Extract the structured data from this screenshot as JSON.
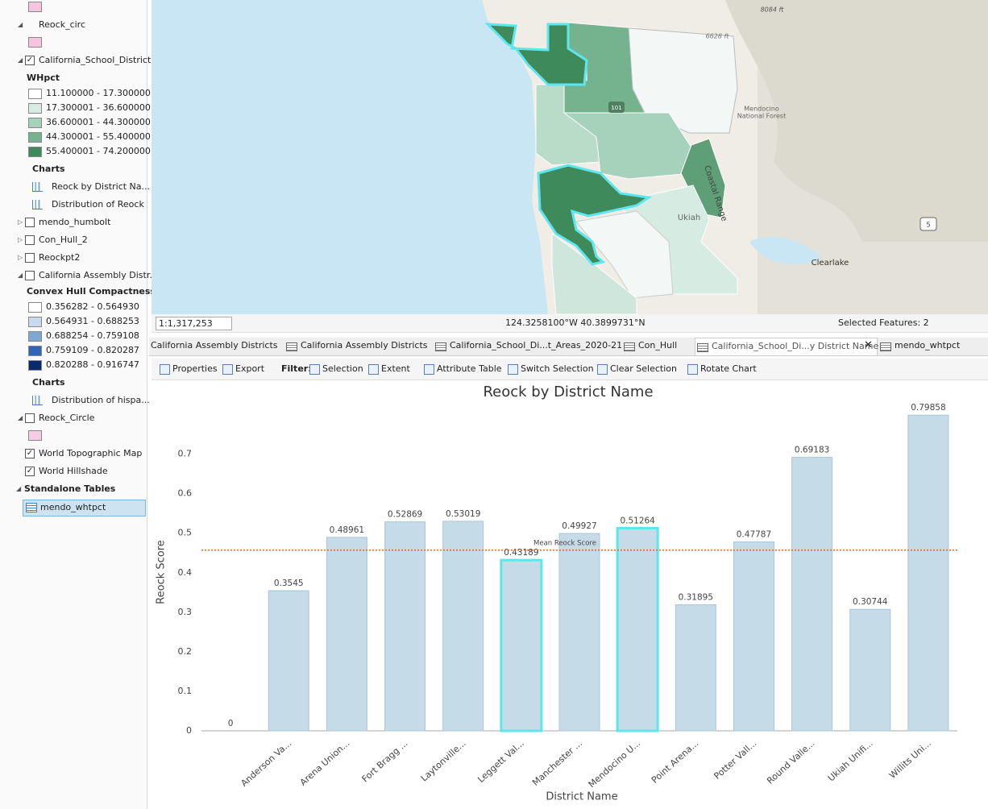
{
  "contents": {
    "top_swatch_color": "#f4c5dc",
    "layers": [
      {
        "name": "Reock_circ",
        "expanded": true,
        "swatch": "#f4c5dc"
      },
      {
        "name": "California_School_District...",
        "expanded": true,
        "checked": true,
        "legend_title": "WHpct",
        "classes": [
          {
            "label": "11.100000 - 17.300000",
            "color": "#ffffff"
          },
          {
            "label": "17.300001 - 36.600000",
            "color": "#d6ebe2"
          },
          {
            "label": "36.600001 - 44.300000",
            "color": "#a6d1bb"
          },
          {
            "label": "44.300001 - 55.400000",
            "color": "#75b38f"
          },
          {
            "label": "55.400001 - 74.200000",
            "color": "#3f8a5a"
          }
        ],
        "charts_title": "Charts",
        "charts": [
          "Reock by District Na...",
          "Distribution of Reock"
        ]
      },
      {
        "name": "mendo_humbolt",
        "expanded": false,
        "checked": false
      },
      {
        "name": "Con_Hull_2",
        "expanded": false,
        "checked": false
      },
      {
        "name": "Reockpt2",
        "expanded": false,
        "checked": false
      },
      {
        "name": "California Assembly Distr...",
        "expanded": true,
        "checked": false,
        "legend_title": "Convex Hull Compactness",
        "classes": [
          {
            "label": "0.356282 - 0.564930",
            "color": "#ffffff"
          },
          {
            "label": "0.564931 - 0.688253",
            "color": "#c8d9ee"
          },
          {
            "label": "0.688254 - 0.759108",
            "color": "#7ea8d3"
          },
          {
            "label": "0.759109 - 0.820287",
            "color": "#2f66b3"
          },
          {
            "label": "0.820288 - 0.916747",
            "color": "#0b2a6b"
          }
        ],
        "charts_title": "Charts",
        "charts": [
          "Distribution of hispa..."
        ]
      },
      {
        "name": "Reock_Circle",
        "expanded": true,
        "checked": false,
        "swatch": "#f6cbe6"
      },
      {
        "name": "World Topographic Map",
        "checked": true
      },
      {
        "name": "World Hillshade",
        "checked": true
      }
    ],
    "standalone_title": "Standalone Tables",
    "tables": [
      "mendo_whtpct"
    ]
  },
  "map": {
    "labels": {
      "peak1": "8084 ft",
      "peak2": "6628 ft",
      "forest": [
        "Mendocino",
        "National Forest"
      ],
      "ukiah": "Ukiah",
      "clearlake": "Clearlake",
      "range": "Coastal Range",
      "hwy101": "101",
      "hwy5": "5"
    },
    "scale": "1:1,317,253",
    "coordinates": "124.3258100°W 40.3899731°N",
    "selected_features": "Selected Features: 2"
  },
  "tabs": {
    "items": [
      "California Assembly Districts",
      "California Assembly Districts",
      "California_School_Di...t_Areas_2020-21",
      "Con_Hull",
      "California_School_Di...y District Name",
      "mendo_whtpct"
    ],
    "active": 4
  },
  "toolbar": {
    "properties": "Properties",
    "export": "Export",
    "filter": "Filter:",
    "selection": "Selection",
    "extent": "Extent",
    "attribute_table": "Attribute Table",
    "switch_selection": "Switch Selection",
    "clear_selection": "Clear Selection",
    "rotate_chart": "Rotate Chart"
  },
  "chart_data": {
    "type": "bar",
    "title": "Reock by District Name",
    "x_label": "District Name",
    "y_label": "Reock Score",
    "categories": [
      null,
      "Anderson Va...",
      "Arena Union...",
      "Fort Bragg ...",
      "Laytonville...",
      "Leggett Val...",
      "Manchester ...",
      "Mendocino U...",
      "Point Arena...",
      "Potter Vall...",
      "Round Valle...",
      "Ukiah Unifi...",
      "Willits Uni..."
    ],
    "values": [
      0,
      0.3545,
      0.48961,
      0.52869,
      0.53019,
      0.43189,
      0.49927,
      0.51264,
      0.31895,
      0.47787,
      0.69183,
      0.30744,
      0.79858
    ],
    "color": "#c5dbe8",
    "selected": [
      5,
      7
    ],
    "selected_color": "#5ee6ef",
    "ylim": [
      0,
      0.85
    ],
    "yticks": [
      0,
      0.1,
      0.2,
      0.3,
      0.4,
      0.5,
      0.6,
      0.7
    ],
    "grid": false,
    "mean_line": {
      "label": "Mean Reock Score",
      "value": 0.457,
      "color": "#e0662f"
    }
  }
}
